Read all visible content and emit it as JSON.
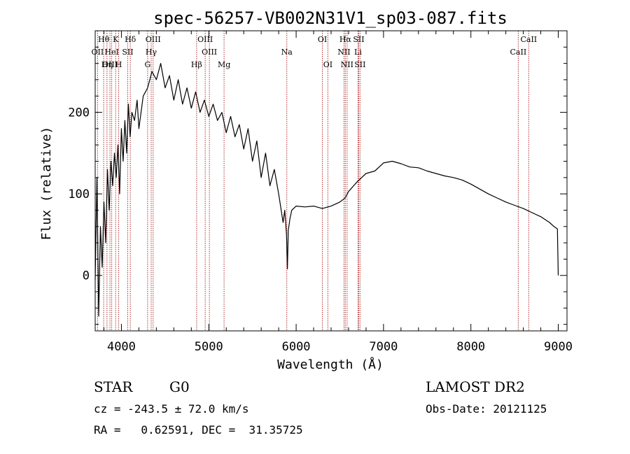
{
  "footer": {
    "class_label": "STAR",
    "subclass_label": "G0",
    "survey": "LAMOST DR2",
    "cz_line": "cz = -243.5 ± 72.0 km/s",
    "obs_date_line": "Obs-Date: 20121125",
    "radec_line": "RA =   0.62591, DEC =  31.35725"
  },
  "colors": {
    "spectrum": "#000000",
    "line_markers": "#b03030",
    "axes": "#000000",
    "background": "#ffffff"
  },
  "chart_data": {
    "type": "line",
    "title": "spec-56257-VB002N31V1_sp03-087.fits",
    "xlabel": "Wavelength (Å)",
    "ylabel": "Flux (relative)",
    "xlim": [
      3700,
      9100
    ],
    "ylim": [
      -68,
      300
    ],
    "xticks": [
      4000,
      5000,
      6000,
      7000,
      8000,
      9000
    ],
    "yticks": [
      0,
      100,
      200
    ],
    "series": [
      {
        "x": [
          3700,
          3720,
          3740,
          3760,
          3780,
          3800,
          3820,
          3840,
          3860,
          3880,
          3900,
          3920,
          3940,
          3960,
          3980,
          4000,
          4020,
          4040,
          4060,
          4080,
          4100,
          4120,
          4150,
          4180,
          4200,
          4250,
          4300,
          4350,
          4400,
          4450,
          4500,
          4550,
          4600,
          4650,
          4700,
          4750,
          4800,
          4850,
          4900,
          4950,
          5000,
          5050,
          5100,
          5150,
          5200,
          5250,
          5300,
          5350,
          5400,
          5450,
          5500,
          5550,
          5600,
          5650,
          5700,
          5750,
          5800,
          5850,
          5870,
          5890,
          5900,
          5910,
          5930,
          5950,
          6000,
          6100,
          6200,
          6300,
          6400,
          6500,
          6560,
          6600,
          6700,
          6800,
          6900,
          7000,
          7100,
          7200,
          7300,
          7400,
          7500,
          7600,
          7700,
          7800,
          7900,
          8000,
          8100,
          8200,
          8300,
          8400,
          8500,
          8600,
          8700,
          8800,
          8900,
          8950,
          8990,
          9000
        ],
        "y": [
          -5,
          120,
          -50,
          60,
          10,
          90,
          40,
          130,
          80,
          140,
          110,
          150,
          120,
          160,
          100,
          180,
          140,
          190,
          150,
          210,
          170,
          200,
          190,
          215,
          180,
          220,
          230,
          250,
          240,
          260,
          230,
          245,
          215,
          240,
          210,
          230,
          205,
          225,
          200,
          215,
          195,
          210,
          190,
          200,
          175,
          195,
          170,
          185,
          155,
          180,
          140,
          165,
          120,
          150,
          110,
          130,
          100,
          65,
          80,
          50,
          8,
          55,
          70,
          80,
          85,
          84,
          85,
          82,
          85,
          90,
          95,
          103,
          115,
          125,
          128,
          138,
          140,
          137,
          133,
          132,
          128,
          125,
          122,
          120,
          117,
          112,
          106,
          100,
          95,
          90,
          86,
          82,
          77,
          72,
          65,
          60,
          57,
          0
        ]
      }
    ],
    "spectral_lines": [
      {
        "label": "Hθ",
        "x": 3797,
        "row": 0
      },
      {
        "label": "OII",
        "x": 3727,
        "row": 1
      },
      {
        "label": "OIII",
        "x": 3869,
        "row": 2
      },
      {
        "label": "HeI",
        "x": 3889,
        "row": 1
      },
      {
        "label": "Hη",
        "x": 3835,
        "row": 2
      },
      {
        "label": "K",
        "x": 3934,
        "row": 0
      },
      {
        "label": "H",
        "x": 3969,
        "row": 2
      },
      {
        "label": "SII",
        "x": 4072,
        "row": 1
      },
      {
        "label": "Hδ",
        "x": 4102,
        "row": 0
      },
      {
        "label": "OIII",
        "x": 4363,
        "row": 0
      },
      {
        "label": "Hγ",
        "x": 4341,
        "row": 1
      },
      {
        "label": "G",
        "x": 4300,
        "row": 2
      },
      {
        "label": "OIII",
        "x": 4959,
        "row": 0
      },
      {
        "label": "OIII",
        "x": 5007,
        "row": 1
      },
      {
        "label": "Hβ",
        "x": 4861,
        "row": 2
      },
      {
        "label": "Mg",
        "x": 5175,
        "row": 2
      },
      {
        "label": "Na",
        "x": 5893,
        "row": 1
      },
      {
        "label": "OI",
        "x": 6300,
        "row": 0
      },
      {
        "label": "OI",
        "x": 6363,
        "row": 2
      },
      {
        "label": "Hα",
        "x": 6563,
        "row": 0
      },
      {
        "label": "SII",
        "x": 6716,
        "row": 0
      },
      {
        "label": "NII",
        "x": 6548,
        "row": 1
      },
      {
        "label": "Li",
        "x": 6708,
        "row": 1
      },
      {
        "label": "NII",
        "x": 6583,
        "row": 2
      },
      {
        "label": "SII",
        "x": 6731,
        "row": 2
      },
      {
        "label": "CaII",
        "x": 8662,
        "row": 0
      },
      {
        "label": "CaII",
        "x": 8542,
        "row": 1
      }
    ]
  }
}
